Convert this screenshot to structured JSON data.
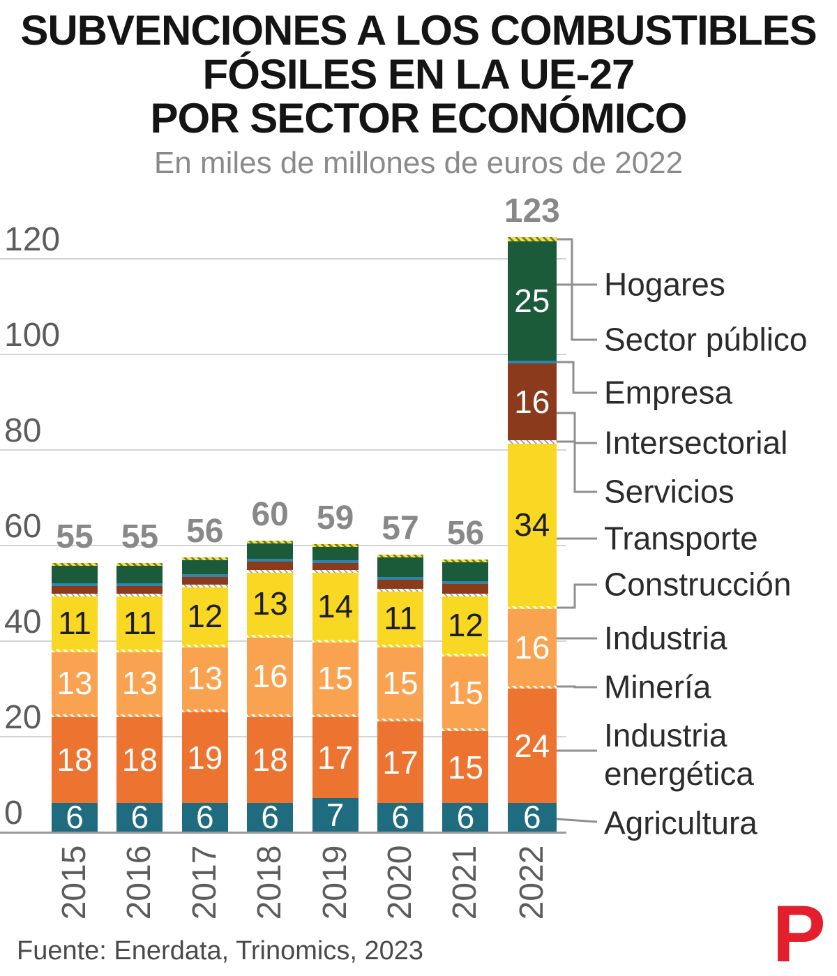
{
  "header": {
    "title_line1": "SUBVENCIONES A LOS COMBUSTIBLES",
    "title_line2": "FÓSILES EN LA UE-27",
    "title_line3": "POR SECTOR ECONÓMICO",
    "subtitle": "En miles de millones de euros de 2022"
  },
  "footer": {
    "source": "Fuente: Enerdata, Trinomics, 2023",
    "logo_letter": "P",
    "logo_color": "#e41f2d"
  },
  "chart_data": {
    "type": "bar",
    "stacked": true,
    "title": "Subvenciones a los combustibles fósiles en la UE-27 por sector económico",
    "unit": "miles de millones de euros de 2022",
    "categories": [
      "2015",
      "2016",
      "2017",
      "2018",
      "2019",
      "2020",
      "2021",
      "2022"
    ],
    "totals": [
      "55",
      "55",
      "56",
      "60",
      "59",
      "57",
      "56",
      "123"
    ],
    "yticks": [
      0,
      20,
      40,
      60,
      80,
      100,
      120
    ],
    "ylim": [
      0,
      130
    ],
    "grid": true,
    "legend_position": "right",
    "legend": [
      "Hogares",
      "Sector público",
      "Empresa",
      "Intersectorial",
      "Servicios",
      "Transporte",
      "Construcción",
      "Industria",
      "Minería",
      "Industria energética",
      "Agricultura"
    ],
    "series": [
      {
        "name": "Agricultura",
        "color": "#1f6b80",
        "label_color": "#ffffff",
        "values": [
          6,
          6,
          6,
          6,
          7,
          6,
          6,
          6
        ],
        "labels": [
          "6",
          "6",
          "6",
          "6",
          "7",
          "6",
          "6",
          "6"
        ]
      },
      {
        "name": "Industria energética",
        "color": "#ed7331",
        "label_color": "#ffffff",
        "values": [
          18,
          18,
          19,
          18,
          17,
          17,
          15,
          24
        ],
        "labels": [
          "18",
          "18",
          "19",
          "18",
          "17",
          "17",
          "15",
          "24"
        ]
      },
      {
        "name": "Minería",
        "pattern": "hatch-orange",
        "values": [
          0.3,
          0.3,
          0.3,
          0.4,
          0.4,
          0.4,
          0.4,
          0.4
        ],
        "labels": [
          null,
          null,
          null,
          null,
          null,
          null,
          null,
          null
        ]
      },
      {
        "name": "Industria",
        "color": "#f9a350",
        "label_color": "#ffffff",
        "values": [
          13,
          13,
          13,
          16,
          15,
          15,
          15,
          16
        ],
        "labels": [
          "13",
          "13",
          "13",
          "16",
          "15",
          "15",
          "15",
          "16"
        ]
      },
      {
        "name": "Construcción",
        "pattern": "hatch-yellow",
        "values": [
          0.3,
          0.3,
          0.3,
          0.4,
          0.4,
          0.4,
          0.4,
          0.4
        ],
        "labels": [
          null,
          null,
          null,
          null,
          null,
          null,
          null,
          null
        ]
      },
      {
        "name": "Transporte",
        "color": "#f8d822",
        "label_color": "#1d1d1d",
        "values": [
          11,
          11,
          12,
          13,
          14,
          11,
          12,
          34
        ],
        "labels": [
          "11",
          "11",
          "12",
          "13",
          "14",
          "11",
          "12",
          "34"
        ]
      },
      {
        "name": "Servicios",
        "pattern": "hatch-gray",
        "values": [
          0.5,
          0.5,
          0.4,
          0.6,
          0.5,
          0.6,
          0.6,
          0.8
        ],
        "labels": [
          null,
          null,
          null,
          null,
          null,
          null,
          null,
          null
        ]
      },
      {
        "name": "Intersectorial",
        "color": "#8c3a1c",
        "label_color": "#ffffff",
        "values": [
          1.6,
          1.6,
          1.5,
          1.8,
          1.5,
          2,
          2,
          16
        ],
        "labels": [
          null,
          null,
          null,
          null,
          null,
          null,
          null,
          "16"
        ]
      },
      {
        "name": "Empresa",
        "color": "#2e86ab",
        "values": [
          0.3,
          0.3,
          0.2,
          0.3,
          0.2,
          0.3,
          0.3,
          0.6
        ],
        "labels": [
          null,
          null,
          null,
          null,
          null,
          null,
          null,
          null
        ]
      },
      {
        "name": "Hogares",
        "color": "#1c5b3a",
        "label_color": "#ffffff",
        "values": [
          3.7,
          3.7,
          3,
          3.2,
          2.7,
          4,
          4,
          25
        ],
        "labels": [
          null,
          null,
          null,
          null,
          null,
          null,
          null,
          "25"
        ]
      },
      {
        "name": "Sector público",
        "pattern": "hatch-olive",
        "values": [
          0.3,
          0.3,
          0.3,
          0.3,
          0.3,
          0.3,
          0.3,
          0.8
        ],
        "labels": [
          null,
          null,
          null,
          null,
          null,
          null,
          null,
          null
        ]
      }
    ]
  }
}
